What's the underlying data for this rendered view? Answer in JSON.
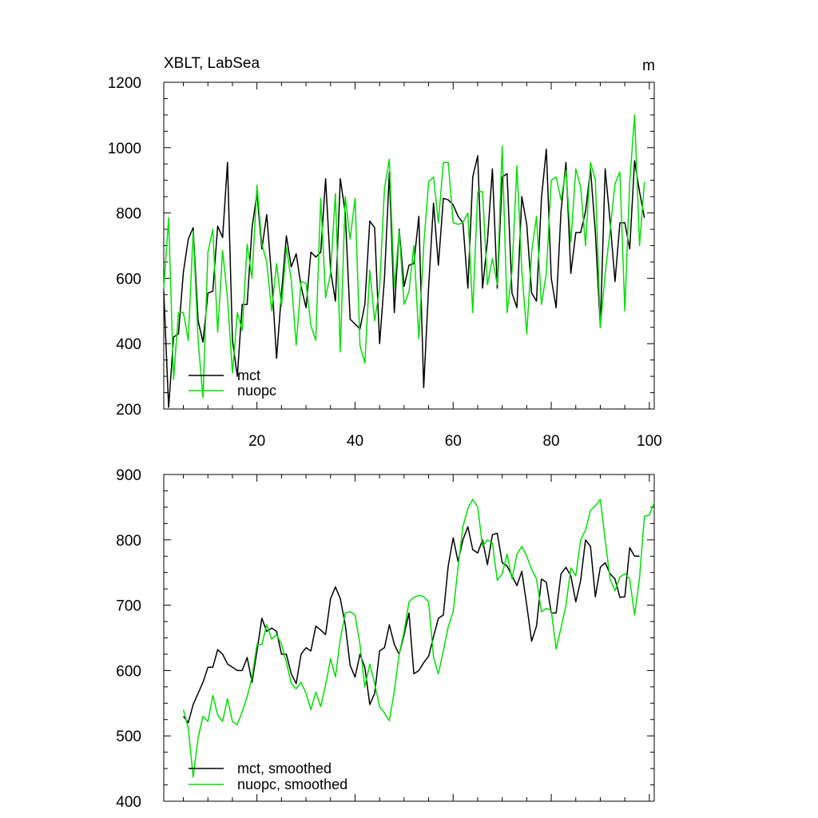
{
  "colors": {
    "mct": "#000000",
    "nuopc": "#00e000",
    "axis": "#000000",
    "background": "#ffffff"
  },
  "chart_data": [
    {
      "type": "line",
      "title": "XBLT, LabSea",
      "units": "m",
      "xlim": [
        1,
        101
      ],
      "ylim": [
        200,
        1200
      ],
      "xticks": [
        20,
        40,
        60,
        80,
        100
      ],
      "yticks": [
        200,
        400,
        600,
        800,
        1000,
        1200
      ],
      "legend_position": "bottom-left",
      "series": [
        {
          "name": "mct",
          "color": "#000000",
          "x_start": 1,
          "values": [
            560,
            205,
            420,
            430,
            620,
            720,
            755,
            470,
            405,
            555,
            560,
            760,
            725,
            955,
            410,
            300,
            520,
            520,
            755,
            860,
            690,
            795,
            600,
            355,
            555,
            730,
            635,
            675,
            575,
            510,
            680,
            665,
            680,
            905,
            625,
            530,
            905,
            800,
            475,
            460,
            445,
            520,
            775,
            755,
            400,
            600,
            925,
            495,
            750,
            575,
            640,
            645,
            790,
            265,
            575,
            830,
            640,
            845,
            840,
            825,
            790,
            770,
            570,
            910,
            975,
            570,
            715,
            935,
            570,
            910,
            920,
            555,
            510,
            850,
            765,
            555,
            530,
            845,
            995,
            600,
            510,
            805,
            955,
            615,
            740,
            740,
            805,
            935,
            740,
            450,
            935,
            775,
            590,
            770,
            770,
            690,
            960,
            865,
            785
          ],
          "label": "mct"
        },
        {
          "name": "nuopc",
          "color": "#00e000",
          "x_start": 1,
          "values": [
            570,
            785,
            290,
            495,
            495,
            410,
            745,
            410,
            235,
            680,
            750,
            435,
            685,
            540,
            310,
            495,
            440,
            705,
            600,
            885,
            705,
            650,
            500,
            645,
            515,
            695,
            595,
            395,
            590,
            585,
            455,
            410,
            845,
            540,
            615,
            860,
            375,
            850,
            720,
            845,
            395,
            340,
            625,
            470,
            570,
            875,
            965,
            570,
            745,
            520,
            560,
            700,
            415,
            700,
            895,
            910,
            770,
            955,
            955,
            770,
            765,
            770,
            800,
            495,
            865,
            865,
            580,
            660,
            580,
            1005,
            495,
            620,
            945,
            625,
            430,
            680,
            790,
            520,
            615,
            900,
            910,
            840,
            930,
            710,
            935,
            880,
            700,
            955,
            900,
            450,
            615,
            745,
            890,
            925,
            500,
            895,
            1100,
            700,
            895
          ],
          "label": "nuopc"
        }
      ]
    },
    {
      "type": "line",
      "title": "",
      "units": "",
      "xlim": [
        1,
        101
      ],
      "ylim": [
        400,
        900
      ],
      "xticks": [
        20,
        40,
        60,
        80,
        100
      ],
      "yticks": [
        400,
        500,
        600,
        700,
        800,
        900
      ],
      "legend_position": "bottom-left",
      "series": [
        {
          "name": "mct, smoothed",
          "color": "#000000",
          "x_start": 5,
          "values": [
            530,
            520,
            548,
            565,
            582,
            605,
            605,
            632,
            625,
            610,
            605,
            600,
            600,
            620,
            582,
            630,
            680,
            660,
            665,
            660,
            625,
            625,
            595,
            580,
            625,
            635,
            630,
            668,
            662,
            655,
            710,
            728,
            710,
            670,
            608,
            590,
            625,
            605,
            548,
            565,
            630,
            635,
            670,
            640,
            625,
            655,
            688,
            595,
            600,
            612,
            622,
            652,
            680,
            685,
            760,
            803,
            767,
            800,
            820,
            785,
            780,
            800,
            762,
            808,
            810,
            765,
            760,
            745,
            730,
            752,
            700,
            645,
            668,
            740,
            735,
            688,
            688,
            748,
            758,
            745,
            705,
            738,
            800,
            790,
            713,
            758,
            765,
            748,
            740,
            712,
            713,
            788,
            775,
            775
          ],
          "label": "mct, smoothed"
        },
        {
          "name": "nuopc, smoothed",
          "color": "#00e000",
          "x_start": 5,
          "values": [
            540,
            512,
            437,
            497,
            530,
            522,
            562,
            532,
            522,
            557,
            522,
            517,
            537,
            560,
            590,
            640,
            640,
            670,
            648,
            655,
            640,
            613,
            580,
            572,
            582,
            565,
            540,
            567,
            545,
            578,
            618,
            590,
            648,
            688,
            690,
            685,
            640,
            575,
            610,
            580,
            545,
            535,
            523,
            568,
            625,
            660,
            705,
            712,
            715,
            713,
            705,
            620,
            595,
            630,
            667,
            690,
            758,
            820,
            848,
            862,
            850,
            790,
            800,
            795,
            738,
            748,
            778,
            740,
            778,
            790,
            775,
            755,
            740,
            690,
            695,
            692,
            633,
            665,
            700,
            757,
            745,
            800,
            815,
            845,
            852,
            862,
            800,
            740,
            722,
            743,
            748,
            740,
            685,
            742,
            836,
            838,
            857
          ],
          "label": "nuopc, smoothed"
        }
      ]
    }
  ]
}
